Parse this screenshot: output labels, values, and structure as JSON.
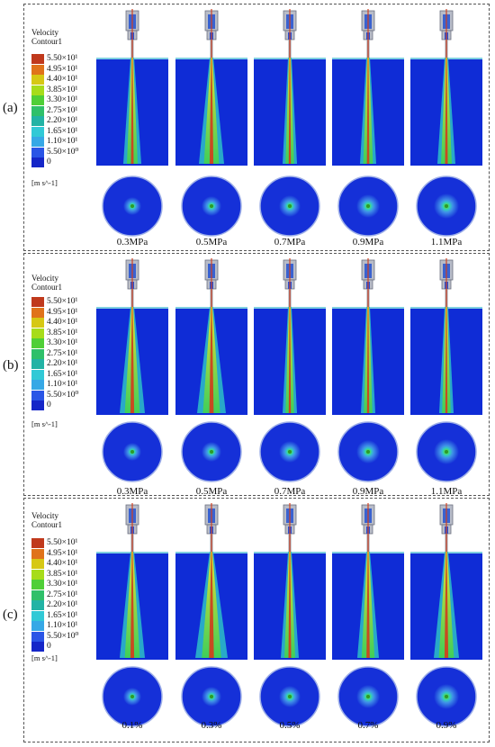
{
  "legend": {
    "title_line1": "Velocity",
    "title_line2": "Contour1",
    "entries": [
      "5.50×10¹",
      "4.95×10¹",
      "4.40×10¹",
      "3.85×10¹",
      "3.30×10¹",
      "2.75×10¹",
      "2.20×10¹",
      "1.65×10¹",
      "1.10×10¹",
      "5.50×10⁰",
      "0"
    ],
    "colors": [
      "#c0391c",
      "#e0731a",
      "#d6c814",
      "#a7dc1a",
      "#4fcf37",
      "#2fc06a",
      "#22b3a5",
      "#31c9d6",
      "#36a8e6",
      "#2a55e6",
      "#1526c8"
    ],
    "unit": "[m s^-1]"
  },
  "panels": [
    {
      "label": "(a)",
      "columns": [
        "0.3MPa",
        "0.5MPa",
        "0.7MPa",
        "0.9MPa",
        "1.1MPa"
      ]
    },
    {
      "label": "(b)",
      "columns": [
        "0.3MPa",
        "0.5MPa",
        "0.7MPa",
        "0.9MPa",
        "1.1MPa"
      ]
    },
    {
      "label": "(c)",
      "columns": [
        "0.1%",
        "0.3%",
        "0.5%",
        "0.7%",
        "0.9%"
      ]
    }
  ]
}
